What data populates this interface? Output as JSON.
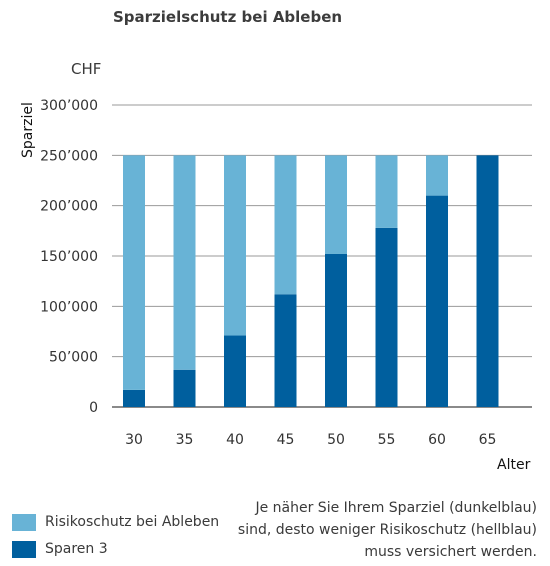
{
  "chart_data": {
    "type": "bar",
    "stacked": true,
    "title": "Sparzielschutz bei Ableben",
    "unit_label": "CHF",
    "ylabel": "Sparziel",
    "xlabel": "Alter",
    "categories": [
      "30",
      "35",
      "40",
      "45",
      "50",
      "55",
      "60",
      "65"
    ],
    "series": [
      {
        "name": "Sparen 3",
        "color": "#005f9e",
        "values": [
          17000,
          37000,
          71000,
          112000,
          152000,
          178000,
          210000,
          250000
        ]
      },
      {
        "name": "Risikoschutz bei Ableben",
        "color": "#68b3d6",
        "values": [
          233000,
          213000,
          179000,
          138000,
          98000,
          72000,
          40000,
          0
        ]
      }
    ],
    "ylim": [
      0,
      300000
    ],
    "yticks": [
      {
        "value": 0,
        "label": "0"
      },
      {
        "value": 50000,
        "label": "50’000"
      },
      {
        "value": 100000,
        "label": "100’000"
      },
      {
        "value": 150000,
        "label": "150’000"
      },
      {
        "value": 200000,
        "label": "200’000"
      },
      {
        "value": 250000,
        "label": "250’000"
      },
      {
        "value": 300000,
        "label": "300’000"
      }
    ],
    "grid": true,
    "legend": {
      "position": "bottom-left",
      "entries": [
        "Risikoschutz bei Ableben",
        "Sparen 3"
      ]
    },
    "note": [
      "Je näher Sie Ihrem Sparziel (dunkelblau)",
      "sind, desto weniger Risikoschutz (hellblau)",
      "muss versichert werden."
    ]
  }
}
